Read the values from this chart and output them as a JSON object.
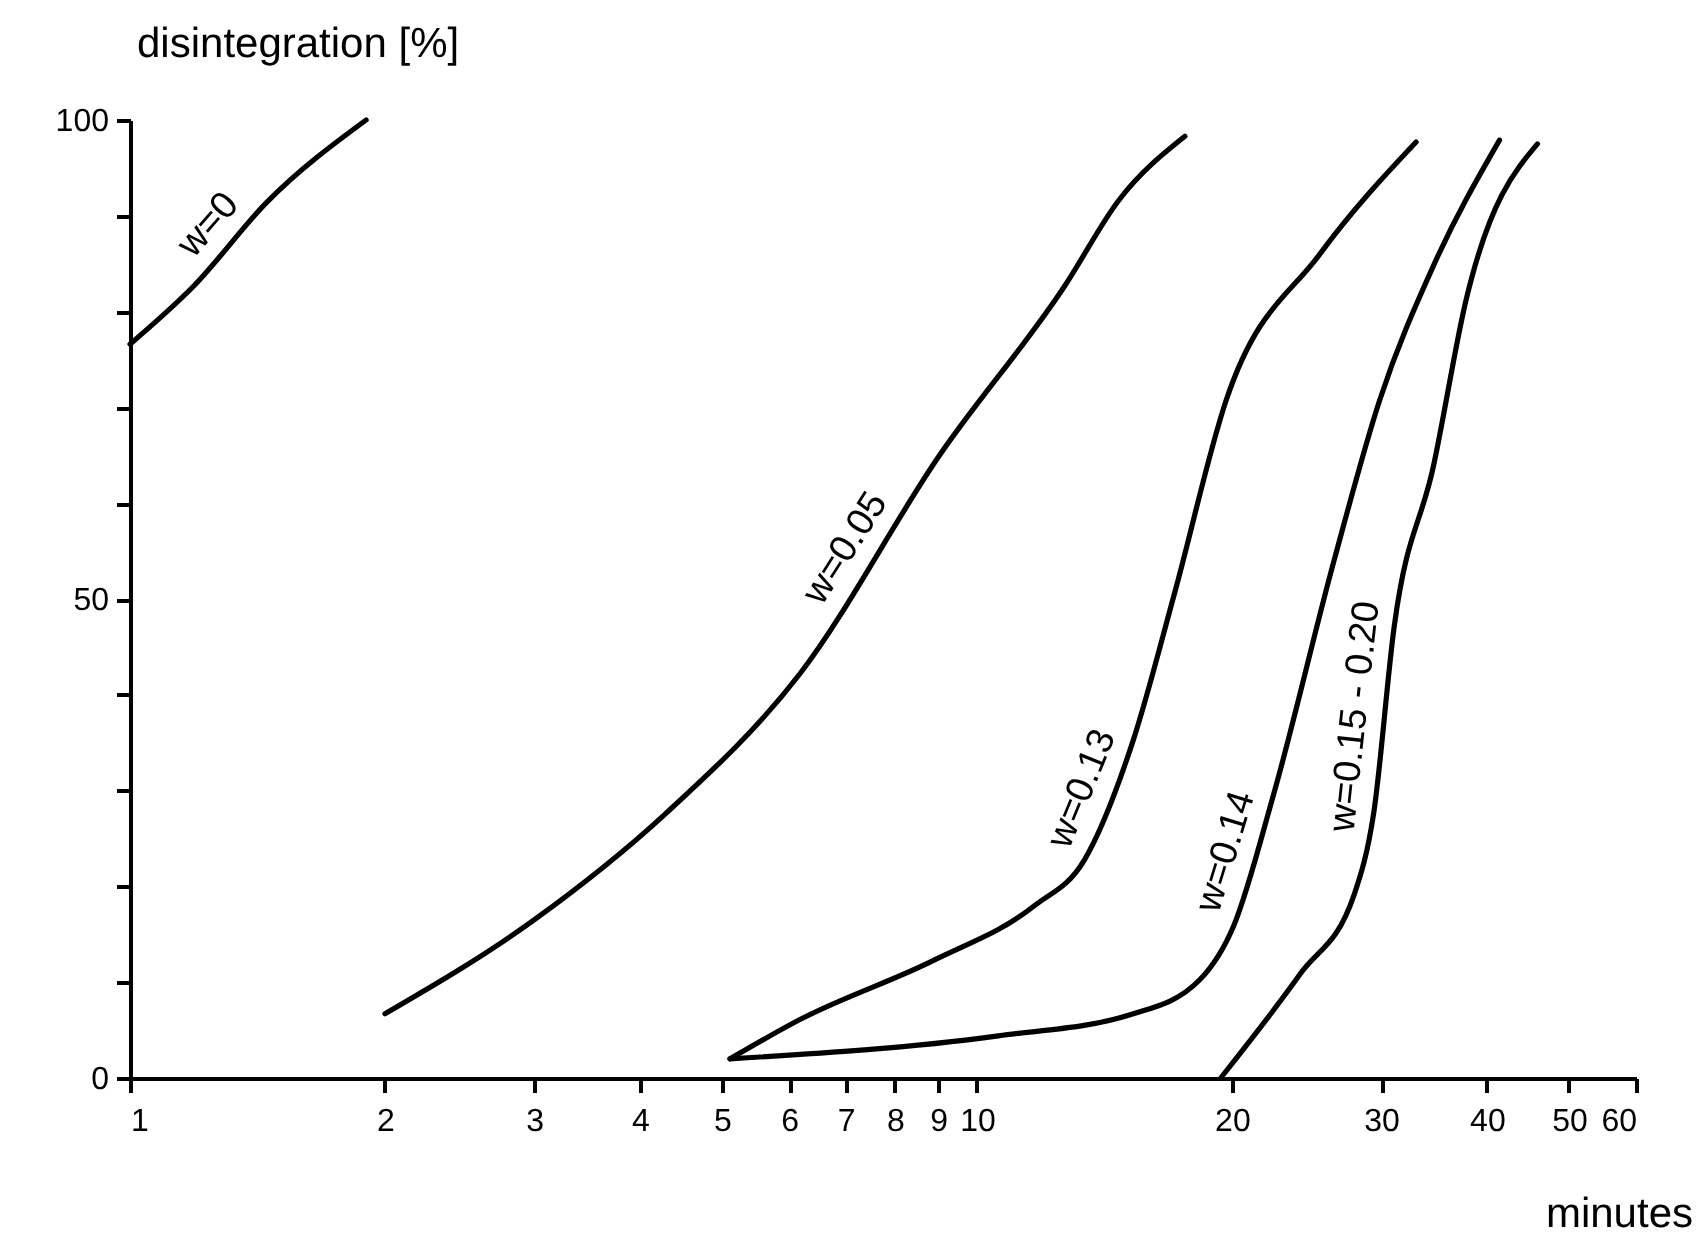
{
  "chart_data": {
    "type": "line",
    "xlabel": "minutes",
    "ylabel": "disintegration [%]",
    "log": "x",
    "xlim": [
      1,
      60
    ],
    "xticks": [
      1,
      2,
      3,
      4,
      5,
      6,
      7,
      8,
      9,
      10,
      20,
      30,
      40,
      50,
      60
    ],
    "ylim": [
      0,
      100
    ],
    "yticks": [
      0,
      {
        "value": 10,
        "label": null
      },
      {
        "value": 20,
        "label": null
      },
      {
        "value": 30,
        "label": null
      },
      {
        "value": 40,
        "label": null
      },
      50,
      {
        "value": 60,
        "label": null
      },
      {
        "value": 70,
        "label": null
      },
      {
        "value": 80,
        "label": null
      },
      {
        "value": 90,
        "label": null
      },
      100
    ],
    "grid": false,
    "marker": "none",
    "line_style": "solid",
    "series": [
      {
        "name": "w=0",
        "color": "#000000",
        "x": [
          1.0,
          1.19,
          1.45,
          1.9
        ],
        "values": [
          76.6,
          82.7,
          91.4,
          100
        ]
      },
      {
        "name": "w=0.05",
        "color": "#000000",
        "x": [
          2.0,
          3.0,
          4.29,
          6.18,
          9.05,
          12.7,
          14.7,
          17.6
        ],
        "values": [
          6.7,
          16.5,
          27.6,
          42.2,
          65.1,
          82.7,
          91.6,
          98.3
        ]
      },
      {
        "name": "w=0.13",
        "color": "#000000",
        "x": [
          5.11,
          6.18,
          8.9,
          11.7,
          13.4,
          15.3,
          17.1,
          19.7,
          25.4,
          33
        ],
        "values": [
          2,
          6.1,
          12.3,
          18,
          22.8,
          35.3,
          50.5,
          70.8,
          86,
          97.7
        ]
      },
      {
        "name": "w=0.14",
        "color": "#000000",
        "x": [
          5.11,
          10.6,
          15.3,
          18.3,
          20.1,
          22.4,
          26.4,
          29.9,
          34.6,
          41.4
        ],
        "values": [
          2,
          4.4,
          6.7,
          10.2,
          15.9,
          29.6,
          54,
          70.8,
          84.8,
          97.9
        ]
      },
      {
        "name": "w=0.15 - 0.20",
        "color": "#000000",
        "x": [
          19.4,
          24.1,
          27.9,
          29.4,
          31.1,
          34.6,
          37.8,
          45.9
        ],
        "values": [
          0,
          10.9,
          19.2,
          27.6,
          47.2,
          63.9,
          81.2,
          97.5
        ]
      }
    ]
  }
}
